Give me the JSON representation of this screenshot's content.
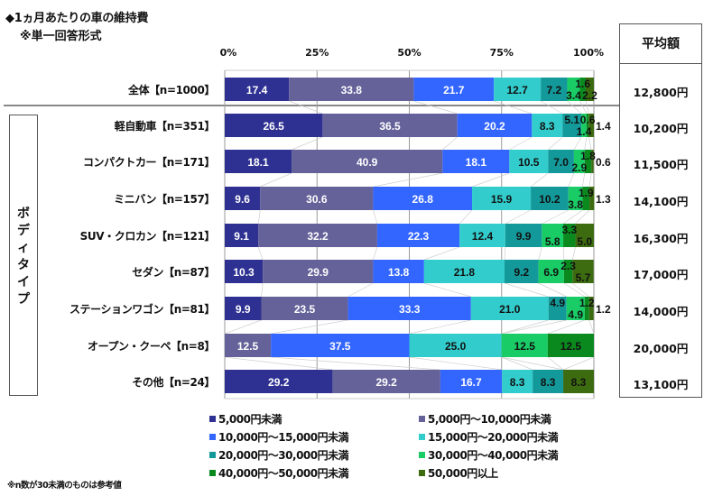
{
  "title": "◆1ヵ月あたりの車の維持費",
  "subtitle": "※単一回答形式",
  "group_label": "ボディタイプ",
  "avg_header": "平均額",
  "footnote": "※n数が30未満のものは参考値",
  "chart_data": {
    "type": "bar",
    "orientation": "horizontal",
    "stacked": true,
    "percent_stacked": true,
    "title": "◆1ヵ月あたりの車の維持費",
    "subtitle": "※単一回答形式",
    "xlabel": "",
    "ylabel": "",
    "xlim": [
      0,
      100
    ],
    "x_ticks": [
      "0%",
      "25%",
      "50%",
      "75%",
      "100%"
    ],
    "grid": true,
    "legend_position": "bottom",
    "categories": [
      "全体【n=1000】",
      "軽自動車【n=351】",
      "コンパクトカー【n=171】",
      "ミニバン【n=157】",
      "SUV・クロカン【n=121】",
      "セダン【n=87】",
      "ステーションワゴン【n=81】",
      "オープン・クーペ【n=8】",
      "その他【n=24】"
    ],
    "series": [
      {
        "name": "5,000円未満",
        "color": "#2e3192",
        "label_color": "#ffffff",
        "values": [
          17.4,
          26.5,
          18.1,
          9.6,
          9.1,
          10.3,
          9.9,
          0,
          29.2
        ]
      },
      {
        "name": "5,000円～10,000円未満",
        "color": "#65629a",
        "label_color": "#ffffff",
        "values": [
          33.8,
          36.5,
          40.9,
          30.6,
          32.2,
          29.9,
          23.5,
          12.5,
          29.2
        ]
      },
      {
        "name": "10,000円～15,000円未満",
        "color": "#3366ff",
        "label_color": "#ffffff",
        "values": [
          21.7,
          20.2,
          18.1,
          26.8,
          22.3,
          13.8,
          33.3,
          37.5,
          16.7
        ]
      },
      {
        "name": "15,000円～20,000円未満",
        "color": "#33cccc",
        "label_color": "#111111",
        "values": [
          12.7,
          8.3,
          10.5,
          15.9,
          12.4,
          21.8,
          21.0,
          25.0,
          8.3
        ]
      },
      {
        "name": "20,000円～30,000円未満",
        "color": "#14999a",
        "label_color": "#111111",
        "values": [
          7.2,
          5.1,
          7.0,
          10.2,
          9.9,
          9.2,
          4.9,
          0,
          8.3
        ]
      },
      {
        "name": "30,000円～40,000円未満",
        "color": "#19cc66",
        "label_color": "#111111",
        "values": [
          3.4,
          1.4,
          2.9,
          3.8,
          5.8,
          6.9,
          4.9,
          12.5,
          0
        ]
      },
      {
        "name": "40,000円～50,000円未満",
        "color": "#0a8a1e",
        "label_color": "#111111",
        "values": [
          1.6,
          0.6,
          1.8,
          1.9,
          3.3,
          2.3,
          1.2,
          12.5,
          0
        ]
      },
      {
        "name": "50,000円以上",
        "color": "#3d6b10",
        "label_color": "#111111",
        "values": [
          2.2,
          1.4,
          0.6,
          1.3,
          5.0,
          5.7,
          1.2,
          0,
          8.3
        ]
      }
    ],
    "averages": [
      "12,800円",
      "10,200円",
      "11,500円",
      "14,100円",
      "16,300円",
      "17,000円",
      "14,000円",
      "20,000円",
      "13,100円"
    ]
  }
}
